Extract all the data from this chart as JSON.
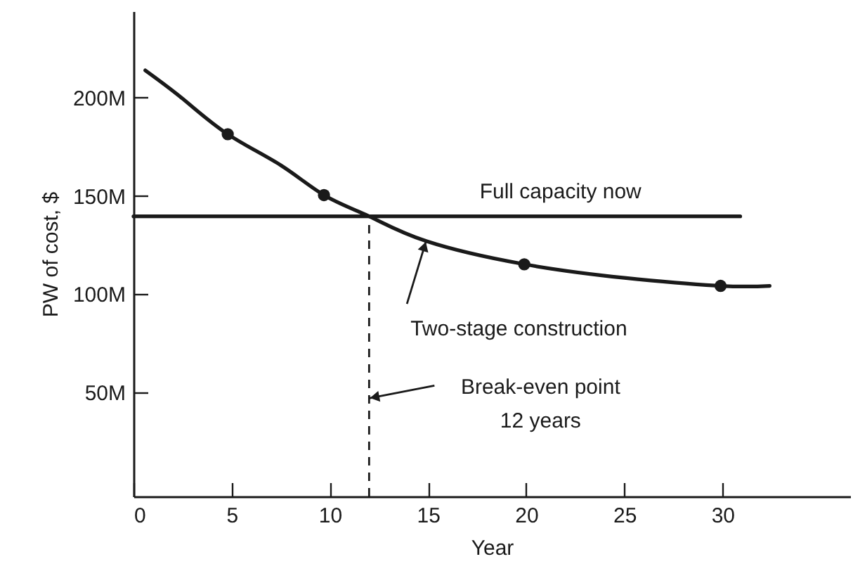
{
  "chart_data": {
    "type": "line",
    "xlabel": "Year",
    "ylabel": "PW of cost, $",
    "xlim": [
      0,
      36.5
    ],
    "ylim": [
      -3,
      244
    ],
    "xticks": [
      0,
      5,
      10,
      15,
      20,
      25,
      30
    ],
    "yticks": [
      {
        "value": 50,
        "label": "50M"
      },
      {
        "value": 100,
        "label": "100M"
      },
      {
        "value": 150,
        "label": "150M"
      },
      {
        "value": 200,
        "label": "200M"
      }
    ],
    "grid": false,
    "series": [
      {
        "color": "#1a1a1a",
        "marker": "none",
        "x": [
          0.6,
          2.5,
          4.8,
          7.5,
          9.7,
          12,
          14.9,
          19.9,
          25,
          29.9,
          32.4
        ],
        "values": [
          213.9,
          199.5,
          181.4,
          165.6,
          150.4,
          139.6,
          127,
          115.2,
          108.3,
          104.2,
          104.2
        ]
      },
      {
        "type": "scatter",
        "color": "#1a1a1a",
        "marker": "circle",
        "x": [
          4.8,
          9.7,
          19.9,
          29.9
        ],
        "values": [
          181.4,
          150.4,
          115.2,
          104.2
        ]
      },
      {
        "name": "Full capacity now",
        "color": "#1a1a1a",
        "marker": "none",
        "x": [
          0,
          30.9
        ],
        "values": [
          139.6,
          139.6
        ]
      }
    ],
    "ref_lines": [
      {
        "axis": "x",
        "value": 12,
        "label": null,
        "line_style": "dashed",
        "color": "#1a1a1a"
      }
    ],
    "annotations": [
      {
        "text": "Two-stage construction",
        "x": 14.9,
        "y": 127
      },
      {
        "text": "Break-even point\n12 years",
        "x": 12,
        "y": 47
      }
    ]
  }
}
